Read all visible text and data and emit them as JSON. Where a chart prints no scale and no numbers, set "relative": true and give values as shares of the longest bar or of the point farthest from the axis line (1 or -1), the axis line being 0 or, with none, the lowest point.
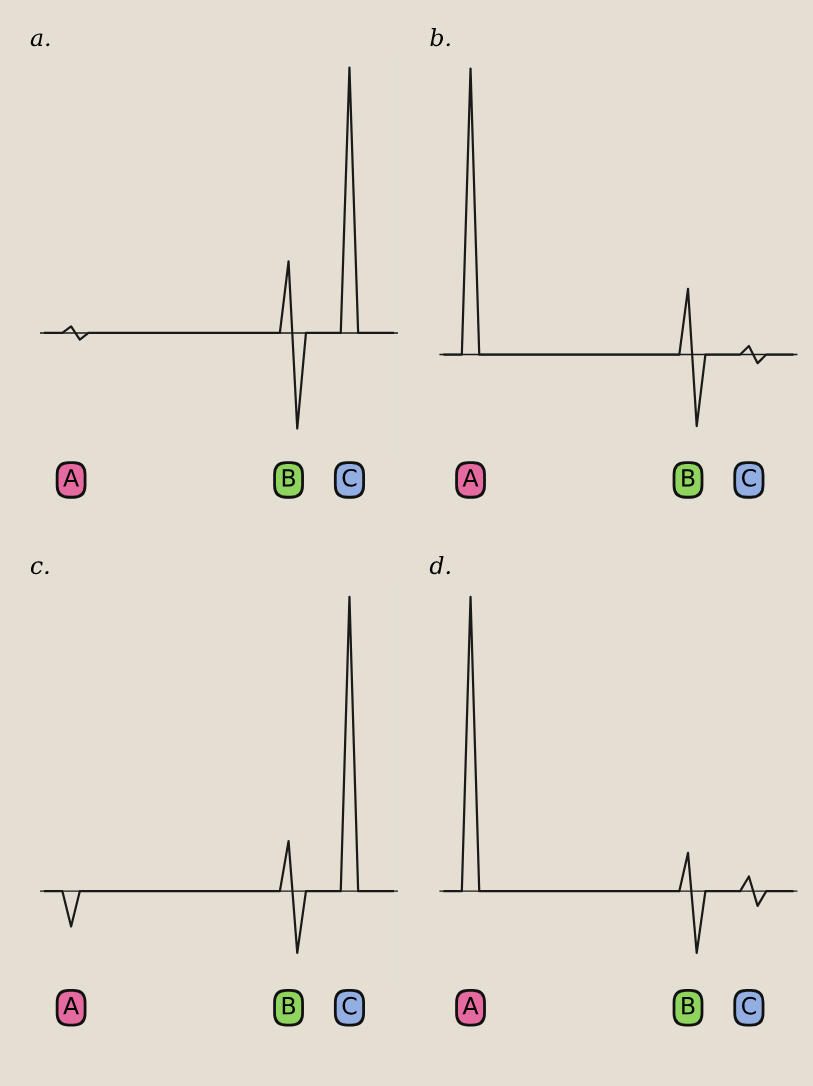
{
  "chart_data": [
    {
      "type": "line",
      "title": "a.",
      "relative": true,
      "categories": [
        null,
        null,
        null,
        "A",
        null,
        null,
        null,
        null,
        null,
        null,
        null,
        null,
        null,
        null,
        null,
        null,
        null,
        null,
        null,
        null,
        null,
        null,
        null,
        null,
        null,
        null,
        null,
        null,
        "B",
        null,
        null,
        null,
        null,
        null,
        null,
        "C",
        null,
        null,
        null,
        null,
        null
      ],
      "series": [
        {
          "color": "#1a1a1a",
          "values": [
            0,
            0,
            0,
            0.025,
            -0.025,
            0,
            0,
            0,
            0,
            0,
            0,
            0,
            0,
            0,
            0,
            0,
            0,
            0,
            0,
            0,
            0,
            0,
            0,
            0,
            0,
            0,
            0,
            0,
            0.27,
            -0.36,
            0,
            0,
            0,
            0,
            0,
            1,
            0,
            0,
            0,
            0,
            0
          ]
        }
      ]
    },
    {
      "type": "line",
      "title": "b.",
      "relative": true,
      "categories": [
        null,
        null,
        null,
        "A",
        null,
        null,
        null,
        null,
        null,
        null,
        null,
        null,
        null,
        null,
        null,
        null,
        null,
        null,
        null,
        null,
        null,
        null,
        null,
        null,
        null,
        null,
        null,
        null,
        "B",
        null,
        null,
        null,
        null,
        null,
        null,
        "C",
        null,
        null,
        null,
        null,
        null
      ],
      "series": [
        {
          "color": "#1a1a1a",
          "values": [
            0,
            0,
            0,
            1,
            0,
            0,
            0,
            0,
            0,
            0,
            0,
            0,
            0,
            0,
            0,
            0,
            0,
            0,
            0,
            0,
            0,
            0,
            0,
            0,
            0,
            0,
            0,
            0,
            0.23,
            -0.25,
            0,
            0,
            0,
            0,
            0,
            0.03,
            -0.03,
            0,
            0,
            0,
            0
          ]
        }
      ]
    },
    {
      "type": "line",
      "title": "c.",
      "relative": true,
      "categories": [
        null,
        null,
        null,
        "A",
        null,
        null,
        null,
        null,
        null,
        null,
        null,
        null,
        null,
        null,
        null,
        null,
        null,
        null,
        null,
        null,
        null,
        null,
        null,
        null,
        null,
        null,
        null,
        null,
        "B",
        null,
        null,
        null,
        null,
        null,
        null,
        "C",
        null,
        null,
        null,
        null,
        null
      ],
      "series": [
        {
          "color": "#1a1a1a",
          "values": [
            0,
            0,
            0,
            -0.12,
            0,
            0,
            0,
            0,
            0,
            0,
            0,
            0,
            0,
            0,
            0,
            0,
            0,
            0,
            0,
            0,
            0,
            0,
            0,
            0,
            0,
            0,
            0,
            0,
            0.17,
            -0.21,
            0,
            0,
            0,
            0,
            0,
            1,
            0,
            0,
            0,
            0,
            0
          ]
        }
      ]
    },
    {
      "type": "line",
      "title": "d.",
      "relative": true,
      "categories": [
        null,
        null,
        null,
        "A",
        null,
        null,
        null,
        null,
        null,
        null,
        null,
        null,
        null,
        null,
        null,
        null,
        null,
        null,
        null,
        null,
        null,
        null,
        null,
        null,
        null,
        null,
        null,
        null,
        "B",
        null,
        null,
        null,
        null,
        null,
        null,
        "C",
        null,
        null,
        null,
        null,
        null
      ],
      "series": [
        {
          "color": "#1a1a1a",
          "values": [
            0,
            0,
            0,
            1,
            0,
            0,
            0,
            0,
            0,
            0,
            0,
            0,
            0,
            0,
            0,
            0,
            0,
            0,
            0,
            0,
            0,
            0,
            0,
            0,
            0,
            0,
            0,
            0,
            0.13,
            -0.21,
            0,
            0,
            0,
            0,
            0,
            0.05,
            -0.05,
            0,
            0,
            0,
            0
          ]
        }
      ]
    }
  ]
}
